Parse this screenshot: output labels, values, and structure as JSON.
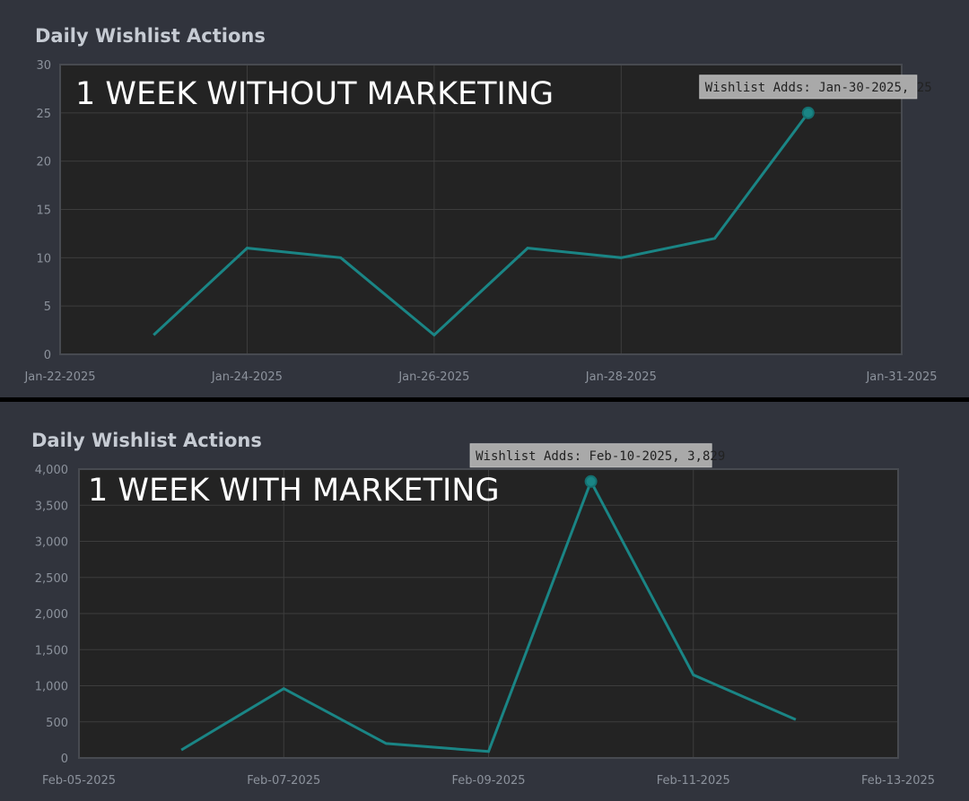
{
  "charts": [
    {
      "title": "Daily Wishlist Actions",
      "overlay_text": "1 WEEK WITHOUT MARKETING",
      "tooltip": "Wishlist Adds: Jan-30-2025, 25",
      "line_color": "#1a8585"
    },
    {
      "title": "Daily Wishlist Actions",
      "overlay_text": "1 WEEK WITH MARKETING",
      "tooltip": "Wishlist Adds: Feb-10-2025, 3,829",
      "line_color": "#1a8585"
    }
  ],
  "chart_data": [
    {
      "type": "line",
      "title": "Daily Wishlist Actions",
      "series": [
        {
          "x": [
            "Jan-23-2025",
            "Jan-24-2025",
            "Jan-25-2025",
            "Jan-26-2025",
            "Jan-27-2025",
            "Jan-28-2025",
            "Jan-29-2025",
            "Jan-30-2025"
          ],
          "values": [
            2,
            11,
            10,
            2,
            11,
            10,
            12,
            25
          ]
        }
      ],
      "xlim": [
        "Jan-22-2025",
        "Jan-31-2025"
      ],
      "ylim": [
        0,
        30
      ],
      "x_ticks": [
        "Jan-22-2025",
        "Jan-24-2025",
        "Jan-26-2025",
        "Jan-28-2025",
        "Jan-31-2025"
      ],
      "y_ticks": [
        "0",
        "5",
        "10",
        "15",
        "20",
        "25",
        "30"
      ],
      "grid": true,
      "highlight_index": 7
    },
    {
      "type": "line",
      "title": "Daily Wishlist Actions",
      "series": [
        {
          "x": [
            "Feb-06-2025",
            "Feb-07-2025",
            "Feb-08-2025",
            "Feb-09-2025",
            "Feb-10-2025",
            "Feb-11-2025",
            "Feb-12-2025"
          ],
          "values": [
            110,
            960,
            200,
            90,
            3829,
            1150,
            530
          ]
        }
      ],
      "xlim": [
        "Feb-05-2025",
        "Feb-13-2025"
      ],
      "ylim": [
        0,
        4000
      ],
      "x_ticks": [
        "Feb-05-2025",
        "Feb-07-2025",
        "Feb-09-2025",
        "Feb-11-2025",
        "Feb-13-2025"
      ],
      "y_ticks": [
        "0",
        "500",
        "1,000",
        "1,500",
        "2,000",
        "2,500",
        "3,000",
        "3,500",
        "4,000"
      ],
      "grid": true,
      "highlight_index": 4
    }
  ]
}
